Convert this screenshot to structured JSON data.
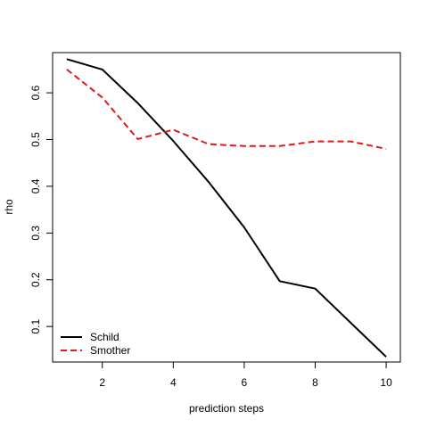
{
  "chart_data": {
    "type": "line",
    "title": "",
    "xlabel": "prediction steps",
    "ylabel": "rho",
    "xlim": [
      0.6,
      10.4
    ],
    "ylim": [
      0.024,
      0.686
    ],
    "xticks": [
      2,
      4,
      6,
      8,
      10
    ],
    "yticks": [
      0.1,
      0.2,
      0.3,
      0.4,
      0.5,
      0.6
    ],
    "grid": false,
    "legend_position": "bottom-left",
    "x": [
      1,
      2,
      3,
      4,
      5,
      6,
      7,
      8,
      9,
      10
    ],
    "series": [
      {
        "name": "Schild",
        "color": "#000000",
        "dash": "solid",
        "values": [
          0.672,
          0.65,
          0.578,
          0.497,
          0.409,
          0.312,
          0.197,
          0.181,
          0.108,
          0.035
        ]
      },
      {
        "name": "Smother",
        "color": "#df1b1b",
        "dash": "dashed",
        "values": [
          0.65,
          0.59,
          0.501,
          0.521,
          0.49,
          0.486,
          0.486,
          0.496,
          0.496,
          0.48
        ]
      }
    ]
  }
}
